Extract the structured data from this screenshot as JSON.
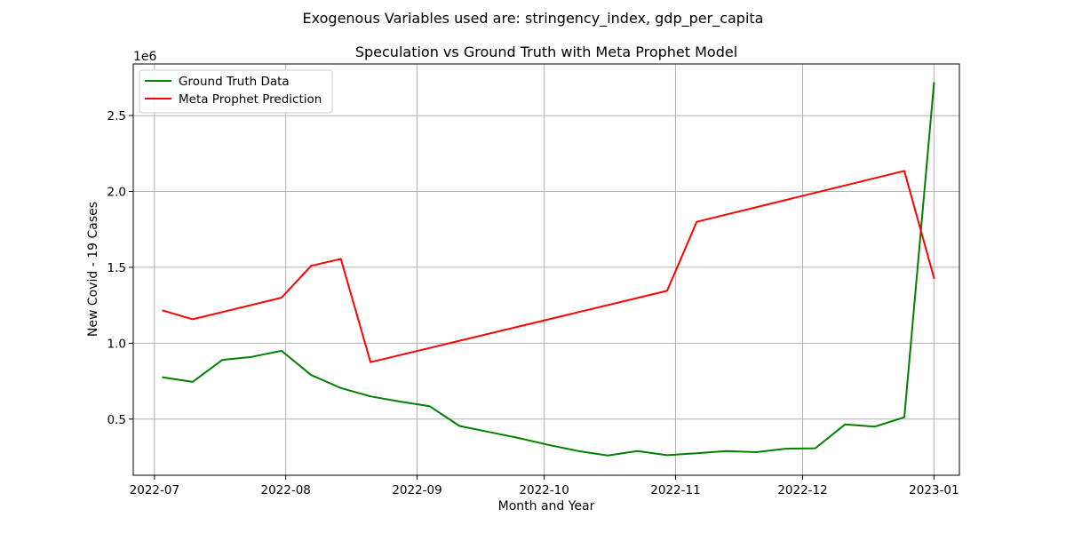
{
  "suptitle": "Exogenous Variables used are: stringency_index, gdp_per_capita",
  "chart_data": {
    "type": "line",
    "title": "Speculation vs Ground Truth with Meta Prophet Model",
    "xlabel": "Month and Year",
    "ylabel": "New Covid - 19 Cases",
    "y_offset_label": "1e6",
    "y_scale_factor": 1000000,
    "xlim": [
      "2022-06-26",
      "2023-01-07"
    ],
    "ylim": [
      130000,
      2840000
    ],
    "x_ticks": [
      {
        "date": "2022-07-01",
        "label": "2022-07"
      },
      {
        "date": "2022-08-01",
        "label": "2022-08"
      },
      {
        "date": "2022-09-01",
        "label": "2022-09"
      },
      {
        "date": "2022-10-01",
        "label": "2022-10"
      },
      {
        "date": "2022-11-01",
        "label": "2022-11"
      },
      {
        "date": "2022-12-01",
        "label": "2022-12"
      },
      {
        "date": "2023-01-01",
        "label": "2023-01"
      }
    ],
    "y_ticks": [
      {
        "value": 500000,
        "label": "0.5"
      },
      {
        "value": 1000000,
        "label": "1.0"
      },
      {
        "value": 1500000,
        "label": "1.5"
      },
      {
        "value": 2000000,
        "label": "2.0"
      },
      {
        "value": 2500000,
        "label": "2.5"
      }
    ],
    "grid": true,
    "legend_position": "top-left",
    "series": [
      {
        "name": "Ground Truth Data",
        "color": "#008000",
        "points": [
          [
            "2022-07-03",
            775000
          ],
          [
            "2022-07-10",
            745000
          ],
          [
            "2022-07-17",
            890000
          ],
          [
            "2022-07-24",
            910000
          ],
          [
            "2022-07-31",
            950000
          ],
          [
            "2022-08-07",
            790000
          ],
          [
            "2022-08-14",
            705000
          ],
          [
            "2022-08-21",
            650000
          ],
          [
            "2022-08-28",
            615000
          ],
          [
            "2022-09-04",
            585000
          ],
          [
            "2022-09-11",
            455000
          ],
          [
            "2022-09-18",
            415000
          ],
          [
            "2022-09-25",
            375000
          ],
          [
            "2022-10-02",
            330000
          ],
          [
            "2022-10-09",
            290000
          ],
          [
            "2022-10-16",
            260000
          ],
          [
            "2022-10-23",
            290000
          ],
          [
            "2022-10-30",
            262000
          ],
          [
            "2022-11-06",
            275000
          ],
          [
            "2022-11-13",
            290000
          ],
          [
            "2022-11-20",
            282000
          ],
          [
            "2022-11-27",
            305000
          ],
          [
            "2022-12-04",
            308000
          ],
          [
            "2022-12-11",
            465000
          ],
          [
            "2022-12-18",
            450000
          ],
          [
            "2022-12-25",
            512000
          ],
          [
            "2023-01-01",
            2715000
          ]
        ]
      },
      {
        "name": "Meta Prophet Prediction",
        "color": "#ff0000",
        "points": [
          [
            "2022-07-03",
            1215000
          ],
          [
            "2022-07-10",
            1158000
          ],
          [
            "2022-07-31",
            1300000
          ],
          [
            "2022-08-07",
            1510000
          ],
          [
            "2022-08-14",
            1555000
          ],
          [
            "2022-08-21",
            875000
          ],
          [
            "2022-10-30",
            1345000
          ],
          [
            "2022-11-06",
            1800000
          ],
          [
            "2022-12-25",
            2135000
          ],
          [
            "2023-01-01",
            1430000
          ]
        ]
      }
    ]
  }
}
